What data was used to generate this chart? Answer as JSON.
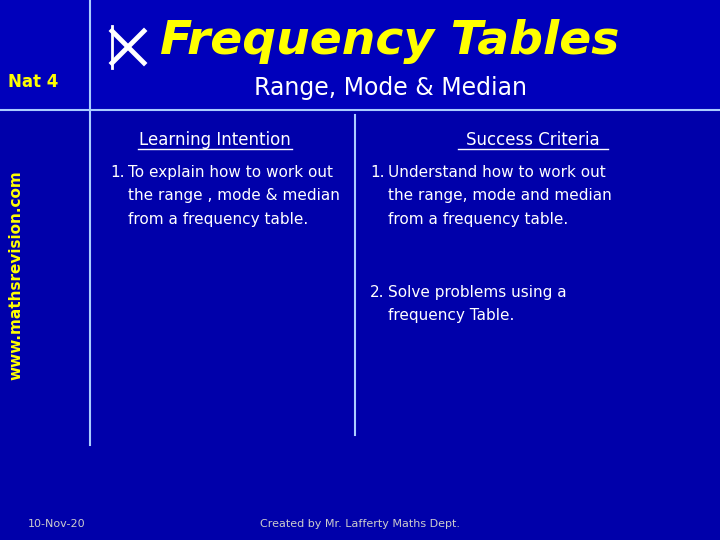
{
  "bg_color": "#0000aa",
  "header_bg_color": "#0000cc",
  "title": "Frequency Tables",
  "subtitle": "Range, Mode & Median",
  "title_color": "#ffff00",
  "subtitle_color": "#ffffff",
  "nat4_label": "Nat 4",
  "nat4_color": "#ffff00",
  "website": "www.mathsrevision.com",
  "website_color": "#ffff00",
  "left_heading": "Learning Intention",
  "right_heading": "Success Criteria",
  "heading_color": "#ffffff",
  "body_text_color": "#ffffff",
  "footer_left": "10-Nov-20",
  "footer_right": "Created by Mr. Lafferty Maths Dept.",
  "footer_color": "#cccccc",
  "divider_color": "#aaccff",
  "header_divider_color": "#aaccff"
}
